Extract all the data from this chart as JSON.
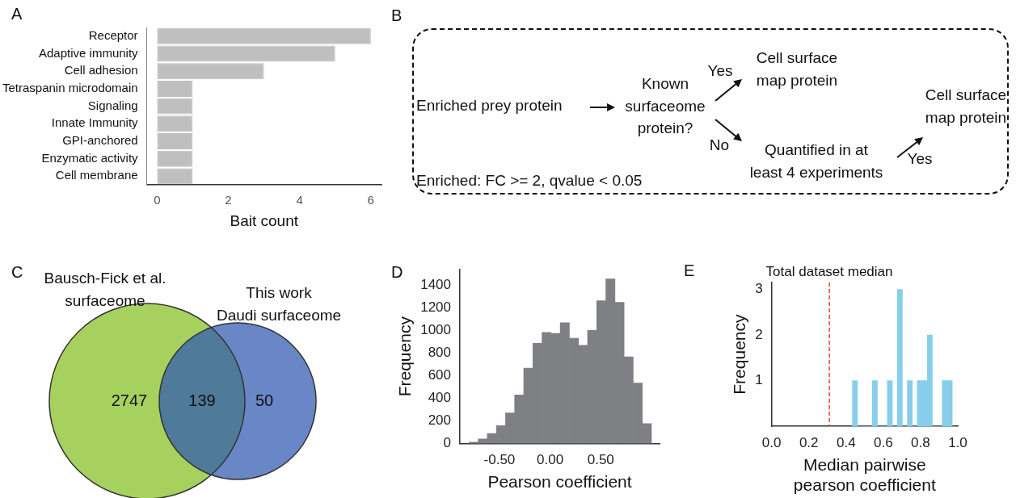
{
  "chart_data": [
    {
      "type": "bar",
      "title": "A",
      "orientation": "horizontal",
      "xlabel": "Bait count",
      "categories": [
        "Receptor",
        "Adaptive immunity",
        "Cell adhesion",
        "Tetraspanin microdomain",
        "Signaling",
        "Innate Immunity",
        "GPI-anchored",
        "Enzymatic activity",
        "Cell membrane"
      ],
      "values": [
        6,
        5,
        3,
        1,
        1,
        1,
        1,
        1,
        1
      ],
      "color": "#bfbfbf",
      "xlim": [
        -0.29,
        6.3
      ],
      "xticks": [
        0,
        2,
        4,
        6
      ]
    },
    {
      "type": "other",
      "title": "B",
      "annotations": [
        "Enriched prey protein",
        "Known\nsurfaceome\nprotein?",
        "Yes",
        "Cell surface\nmap protein",
        "No",
        "Quantified in at\nleast 4 experiments",
        "Yes",
        "Cell surface\nmap protein",
        "Enriched: FC >= 2, qvalue < 0.05"
      ]
    },
    {
      "type": "other",
      "title": "C",
      "annotations": [
        "Bausch-Fick et al.\nsurfaceome",
        "This work\nDaudi surfaceome"
      ],
      "categories": [
        null,
        null,
        null
      ],
      "values": [
        2747,
        139,
        50
      ],
      "colors": [
        "#a6d15f",
        "#4f7a99",
        "#6987c6"
      ],
      "data_labels": true
    },
    {
      "type": "histogram",
      "title": "D",
      "xlabel": "Pearson coefficient",
      "ylabel": "Frequency",
      "bins": [
        -0.8,
        -0.71,
        -0.62,
        -0.53,
        -0.44,
        -0.35,
        -0.26,
        -0.17,
        -0.08,
        0.01,
        0.1,
        0.19,
        0.28,
        0.37,
        0.46,
        0.55,
        0.64,
        0.73,
        0.82,
        0.91,
        1.0
      ],
      "values": [
        12,
        40,
        88,
        157,
        271,
        430,
        668,
        887,
        984,
        975,
        1070,
        932,
        870,
        1001,
        1265,
        1457,
        1250,
        768,
        535,
        176
      ],
      "color": "#7f8084",
      "xlim": [
        -0.89,
        1.08
      ],
      "xticks": [
        {
          "value": -0.5,
          "label": "-0.50"
        },
        {
          "value": 0,
          "label": "0.00"
        },
        {
          "value": 0.5,
          "label": "0.50"
        }
      ],
      "ylim": [
        0,
        1540
      ],
      "yticks": [
        0,
        200,
        400,
        600,
        800,
        1000,
        1200,
        1400
      ]
    },
    {
      "type": "histogram",
      "title": "E",
      "xlabel": "Median pairwise\npearson coefficient",
      "ylabel": "Frequency",
      "bins": [
        0.434,
        0.461,
        0.488,
        0.514,
        0.541,
        0.568,
        0.595,
        0.622,
        0.648,
        0.675,
        0.702,
        0.729,
        0.756,
        0.782,
        0.809,
        0.836,
        0.863,
        0.89,
        0.916,
        0.943,
        0.97
      ],
      "values": [
        1,
        0,
        0,
        0,
        1,
        0,
        0,
        1,
        0,
        3,
        0,
        1,
        0,
        1,
        1,
        2,
        0,
        0,
        1,
        1
      ],
      "color": "#87ceeb",
      "xlim": [
        0,
        1
      ],
      "xticks": [
        {
          "value": 0,
          "label": "0.0"
        },
        {
          "value": 0.2,
          "label": "0.2"
        },
        {
          "value": 0.4,
          "label": "0.4"
        },
        {
          "value": 0.6,
          "label": "0.6"
        },
        {
          "value": 0.8,
          "label": "0.8"
        },
        {
          "value": 1,
          "label": "1.0"
        }
      ],
      "ylim": [
        0,
        3.15
      ],
      "yticks": [
        1,
        2,
        3
      ],
      "ref_lines": [
        {
          "axis": "x",
          "value": 0.31,
          "label": "Total dataset median",
          "color": "#e8412c",
          "line_style": "dashed"
        }
      ]
    }
  ]
}
